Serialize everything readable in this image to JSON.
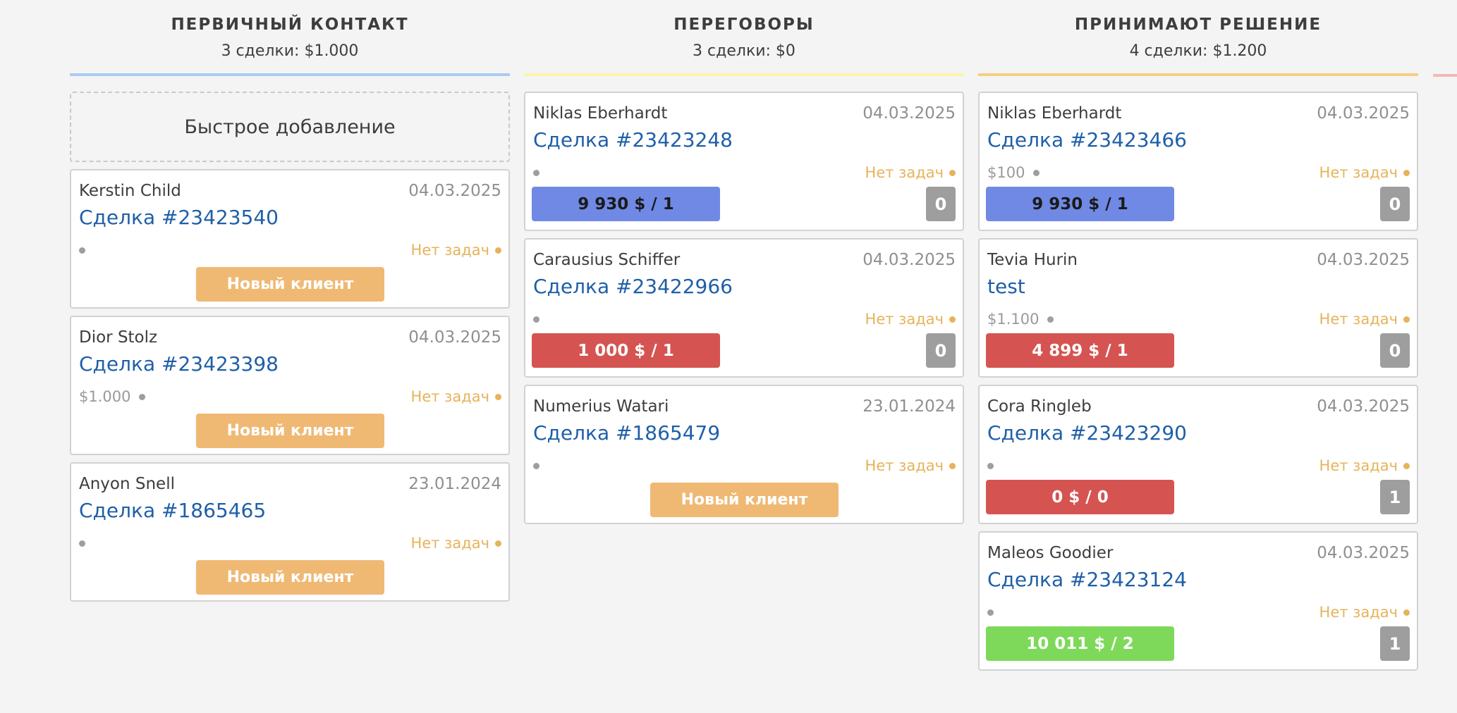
{
  "colors": {
    "line_primary": "#a9cdf3",
    "line_negotiation": "#fbf6a4",
    "line_decision": "#f5cf84",
    "line_next": "#f3b8b8",
    "amount_blue": "#7089e4",
    "amount_red": "#d55451",
    "amount_green": "#7ed95a",
    "tag_orange": "#efb974",
    "tasks_amber": "#e6b35a",
    "link_blue": "#1f5fa8"
  },
  "columns": [
    {
      "title": "ПЕРВИЧНЫЙ КОНТАКТ",
      "summary": "3 сделки: $1.000",
      "quick_add": "Быстрое добавление",
      "cards": [
        {
          "contact": "Kerstin Child",
          "date": "04.03.2025",
          "deal": "Сделка #23423540",
          "price": "",
          "tasks": "Нет задач",
          "tag": "Новый клиент"
        },
        {
          "contact": "Dior Stolz",
          "date": "04.03.2025",
          "deal": "Сделка #23423398",
          "price": "$1.000",
          "tasks": "Нет задач",
          "tag": "Новый клиент"
        },
        {
          "contact": "Anyon Snell",
          "date": "23.01.2024",
          "deal": "Сделка #1865465",
          "price": "",
          "tasks": "Нет задач",
          "tag": "Новый клиент"
        }
      ]
    },
    {
      "title": "ПЕРЕГОВОРЫ",
      "summary": "3 сделки: $0",
      "cards": [
        {
          "contact": "Niklas Eberhardt",
          "date": "04.03.2025",
          "deal": "Сделка #23423248",
          "price": "",
          "tasks": "Нет задач",
          "amount": "9 930 $ / 1",
          "amount_color": "blue",
          "count": "0"
        },
        {
          "contact": "Carausius Schiffer",
          "date": "04.03.2025",
          "deal": "Сделка #23422966",
          "price": "",
          "tasks": "Нет задач",
          "amount": "1 000 $ / 1",
          "amount_color": "red",
          "count": "0"
        },
        {
          "contact": "Numerius Watari",
          "date": "23.01.2024",
          "deal": "Сделка #1865479",
          "price": "",
          "tasks": "Нет задач",
          "tag": "Новый клиент"
        }
      ]
    },
    {
      "title": "ПРИНИМАЮТ РЕШЕНИЕ",
      "summary": "4 сделки: $1.200",
      "cards": [
        {
          "contact": "Niklas Eberhardt",
          "date": "04.03.2025",
          "deal": "Сделка #23423466",
          "price": "$100",
          "tasks": "Нет задач",
          "amount": "9 930 $ / 1",
          "amount_color": "blue",
          "count": "0"
        },
        {
          "contact": "Tevia Hurin",
          "date": "04.03.2025",
          "deal": "test",
          "price": "$1.100",
          "tasks": "Нет задач",
          "amount": "4 899 $ / 1",
          "amount_color": "red",
          "count": "0"
        },
        {
          "contact": "Cora Ringleb",
          "date": "04.03.2025",
          "deal": "Сделка #23423290",
          "price": "",
          "tasks": "Нет задач",
          "amount": "0 $ / 0",
          "amount_color": "red",
          "count": "1"
        },
        {
          "contact": "Maleos Goodier",
          "date": "04.03.2025",
          "deal": "Сделка #23423124",
          "price": "",
          "tasks": "Нет задач",
          "amount": "10 011 $ / 2",
          "amount_color": "green",
          "count": "1"
        }
      ]
    }
  ]
}
